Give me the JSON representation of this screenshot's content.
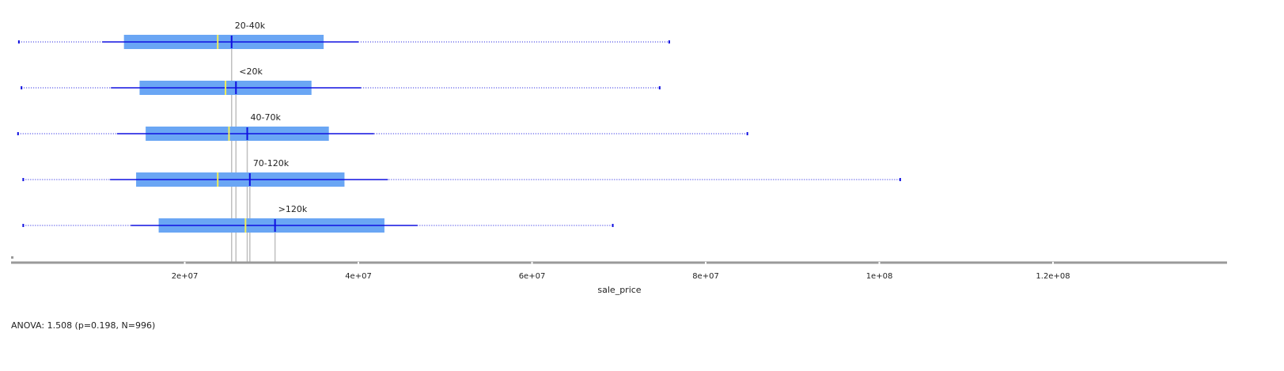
{
  "chart_data": {
    "type": "boxplot",
    "orientation": "horizontal",
    "xlabel": "sale_price",
    "xlim": [
      0,
      140000000
    ],
    "x_ticks": [
      {
        "value": 20000000,
        "label": "2e+07"
      },
      {
        "value": 40000000,
        "label": "4e+07"
      },
      {
        "value": 60000000,
        "label": "6e+07"
      },
      {
        "value": 80000000,
        "label": "8e+07"
      },
      {
        "value": 100000000,
        "label": "1e+08"
      },
      {
        "value": 120000000,
        "label": "1.2e+08"
      }
    ],
    "groups": [
      {
        "label": "20-40k",
        "min": 900000,
        "whisker_low": 10500000,
        "q1": 13000000,
        "median": 23800000,
        "mean": 25400000,
        "q3": 36000000,
        "whisker_high": 40000000,
        "max": 75800000,
        "sd_low": 11000000,
        "sd_high": 40000000
      },
      {
        "label": "<20k",
        "min": 1200000,
        "whisker_low": 11500000,
        "q1": 14800000,
        "median": 24700000,
        "mean": 25900000,
        "q3": 34600000,
        "whisker_high": 40300000,
        "max": 74700000,
        "sd_low": 11500000,
        "sd_high": 40300000
      },
      {
        "label": "40-70k",
        "min": 800000,
        "whisker_low": 12200000,
        "q1": 15500000,
        "median": 25100000,
        "mean": 27200000,
        "q3": 36600000,
        "whisker_high": 41800000,
        "max": 84800000,
        "sd_low": 12200000,
        "sd_high": 41800000
      },
      {
        "label": "70-120k",
        "min": 1400000,
        "whisker_low": 11400000,
        "q1": 14400000,
        "median": 23800000,
        "mean": 27500000,
        "q3": 38400000,
        "whisker_high": 43400000,
        "max": 102400000,
        "sd_low": 11400000,
        "sd_high": 43400000
      },
      {
        "label": ">120k",
        "min": 1400000,
        "whisker_low": 13800000,
        "q1": 17000000,
        "median": 27000000,
        "mean": 30400000,
        "q3": 43000000,
        "whisker_high": 46800000,
        "max": 69300000,
        "sd_low": 13800000,
        "sd_high": 46800000
      }
    ],
    "colors": {
      "box": "#6aa6f4",
      "whisker": "#1010e0",
      "median": "#f2ee55",
      "mean_marker": "#1010e0",
      "mean_line": "#bfbfbf",
      "axis": "#9a9a9a"
    }
  },
  "statistic": "ANOVA: 1.508 (p=0.198, N=996)"
}
